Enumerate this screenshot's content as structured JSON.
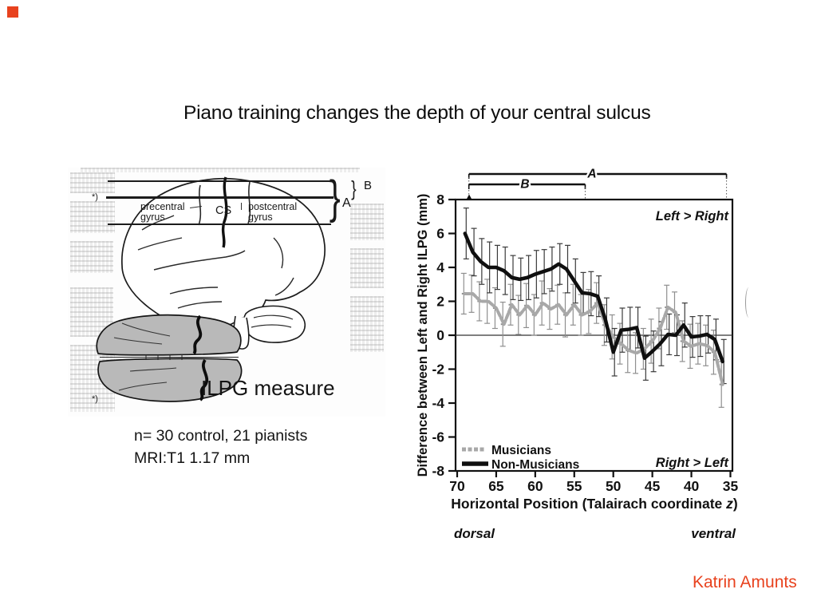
{
  "slide": {
    "title": "Piano training changes the depth of your central sulcus",
    "attribution": "Katrin Amunts",
    "accent_color": "#e8421e"
  },
  "figure": {
    "labels": {
      "asterisk": "*)",
      "precentral_line1": "precentral",
      "precentral_line2": "gyrus",
      "cs": "CS",
      "postcentral_line1": "postcentral",
      "postcentral_line2": "gyrus",
      "bracket_a": "A",
      "bracket_b": "B",
      "brace_glyph": "}",
      "axial_asterisk": "*)",
      "caption": "ILPG measure"
    },
    "notes_line1": "n= 30 control, 21 pianists",
    "notes_line2": "MRI:T1 1.17 mm",
    "axial_fill": "#b9b9b9"
  },
  "chart_data": {
    "type": "line",
    "title": "",
    "xlabel_main": "Horizontal Position (Talairach coordinate ",
    "xlabel_italic": "z",
    "xlabel_close": ")",
    "ylabel": "Difference between Left and Right ILPG (mm)",
    "xlim": [
      70,
      35
    ],
    "ylim": [
      -8,
      8
    ],
    "x_axis_reversed": true,
    "grid": false,
    "x_ticks": [
      70,
      65,
      60,
      55,
      50,
      45,
      40,
      35
    ],
    "y_ticks": [
      8,
      6,
      4,
      2,
      0,
      -2,
      -4,
      -6,
      -8
    ],
    "x": [
      69,
      68,
      67,
      66,
      65,
      64,
      63,
      62,
      61,
      60,
      59,
      58,
      57,
      56,
      55,
      54,
      53,
      52,
      51,
      50,
      49,
      48,
      47,
      46,
      45,
      44,
      43,
      42,
      41,
      40,
      39,
      38,
      37,
      36
    ],
    "series": [
      {
        "name": "Musicians",
        "color": "#a8a8a8",
        "style": "dashed",
        "values": [
          2.45,
          2.45,
          2.0,
          2.0,
          1.6,
          0.65,
          1.8,
          1.2,
          1.75,
          1.2,
          1.9,
          1.55,
          1.8,
          1.2,
          1.8,
          1.2,
          1.4,
          1.9,
          0.6,
          -0.1,
          -0.5,
          -0.9,
          -1.05,
          -0.8,
          -0.35,
          0.4,
          1.65,
          1.35,
          -0.35,
          -0.65,
          -0.5,
          -0.6,
          -1.0,
          -2.9
        ],
        "errors": [
          1.2,
          1.1,
          1.15,
          1.3,
          1.2,
          1.3,
          1.2,
          1.15,
          1.3,
          1.2,
          1.3,
          1.2,
          1.15,
          1.3,
          1.2,
          1.2,
          1.3,
          1.2,
          1.2,
          1.3,
          1.2,
          1.3,
          1.2,
          1.2,
          1.3,
          1.2,
          1.3,
          1.2,
          1.2,
          1.3,
          1.2,
          1.2,
          1.3,
          1.35
        ]
      },
      {
        "name": "Non-Musicians",
        "color": "#0f0f0f",
        "style": "solid",
        "values": [
          6.0,
          4.9,
          4.35,
          4.0,
          4.0,
          3.8,
          3.4,
          3.3,
          3.4,
          3.6,
          3.75,
          3.9,
          4.2,
          3.9,
          3.2,
          2.5,
          2.45,
          2.3,
          0.9,
          -1.0,
          0.3,
          0.35,
          0.45,
          -1.35,
          -0.95,
          -0.5,
          0.05,
          0.0,
          0.6,
          -0.1,
          -0.05,
          0.05,
          -0.25,
          -1.55
        ],
        "errors": [
          1.5,
          1.4,
          1.35,
          1.5,
          1.3,
          1.4,
          1.3,
          1.25,
          1.3,
          1.4,
          1.3,
          1.3,
          1.2,
          1.4,
          1.3,
          1.2,
          1.3,
          1.2,
          1.3,
          1.4,
          1.3,
          1.3,
          1.2,
          1.3,
          1.2,
          1.3,
          1.2,
          1.2,
          1.3,
          1.2,
          1.2,
          1.1,
          1.2,
          1.3
        ]
      }
    ],
    "legend_position": "bottom-left",
    "annotations": {
      "top_right": "Left > Right",
      "bottom_right": "Right > Left",
      "left_end": "dorsal",
      "right_end": "ventral"
    },
    "brackets": [
      {
        "label": "A",
        "from_z": 68.5,
        "to_z": 35.5
      },
      {
        "label": "B",
        "from_z": 68.5,
        "to_z": 53.6
      }
    ]
  }
}
